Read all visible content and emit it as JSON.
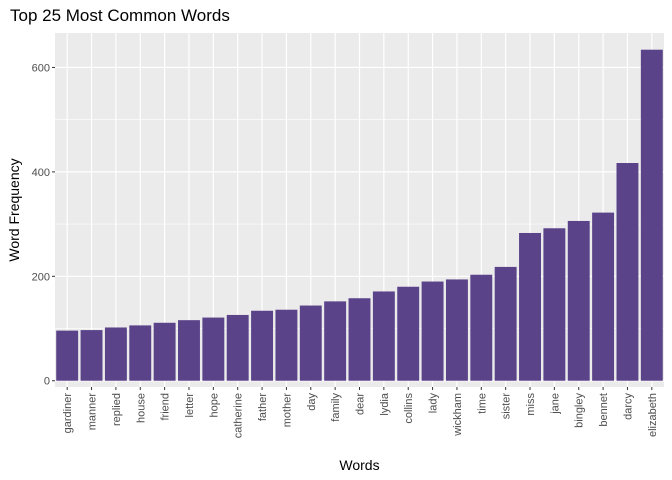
{
  "chart_data": {
    "type": "bar",
    "title": "Top 25 Most Common Words",
    "xlabel": "Words",
    "ylabel": "Word Frequency",
    "categories": [
      "gardiner",
      "manner",
      "replied",
      "house",
      "friend",
      "letter",
      "hope",
      "catherine",
      "father",
      "mother",
      "day",
      "family",
      "dear",
      "lydia",
      "collins",
      "lady",
      "wickham",
      "time",
      "sister",
      "miss",
      "jane",
      "bingley",
      "bennet",
      "darcy",
      "elizabeth"
    ],
    "values": [
      96,
      97,
      102,
      106,
      111,
      116,
      121,
      126,
      134,
      136,
      144,
      152,
      158,
      171,
      180,
      190,
      194,
      203,
      218,
      283,
      292,
      306,
      322,
      417,
      634
    ],
    "yticks": [
      0,
      200,
      400,
      600
    ],
    "ylim": [
      -12,
      666
    ],
    "grid": true,
    "bar_color": "#5a4389",
    "panel_background": "#ebebeb",
    "grid_color": "#ffffff"
  }
}
